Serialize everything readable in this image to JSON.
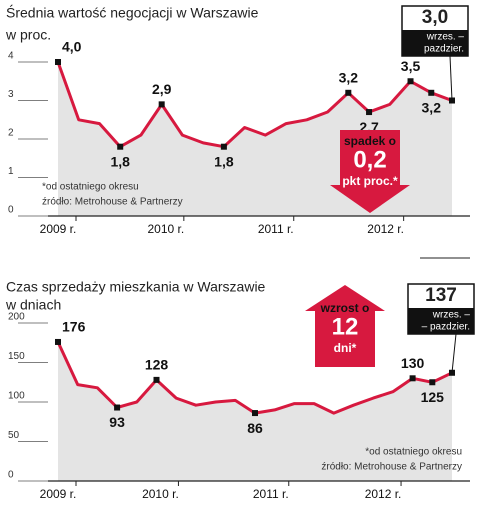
{
  "chart_data": [
    {
      "type": "line",
      "title": "Średnia wartość negocjacji w Warszawie",
      "subtitle": "w proc.",
      "x": [
        0,
        1,
        2,
        3,
        4,
        5,
        6,
        7,
        8,
        9,
        10,
        11,
        12,
        13,
        14,
        15,
        16,
        17,
        18,
        19
      ],
      "xlim": [
        0,
        19
      ],
      "xticks": [
        {
          "value": 0,
          "label": "2009 r."
        },
        {
          "value": 5.2,
          "label": "2010 r."
        },
        {
          "value": 10.5,
          "label": "2011 r."
        },
        {
          "value": 15.8,
          "label": "2012 r."
        }
      ],
      "ylim": [
        0,
        4
      ],
      "yticks": [
        0,
        1,
        2,
        3,
        4
      ],
      "series": [
        {
          "color": "#d7193f",
          "values": [
            4.0,
            2.5,
            2.4,
            1.8,
            2.1,
            2.9,
            2.1,
            1.9,
            1.8,
            2.3,
            2.1,
            2.4,
            2.5,
            2.7,
            3.2,
            2.7,
            2.9,
            3.5,
            3.2,
            3.0
          ],
          "value_labels": [
            "4,0",
            null,
            null,
            "1,8",
            null,
            "2,9",
            null,
            null,
            "1,8",
            null,
            null,
            null,
            null,
            null,
            "3,2",
            "2,7",
            null,
            "3,5",
            "3,2",
            "3,0"
          ]
        }
      ],
      "callout": [
        "wrzes. –",
        "pazdzier."
      ],
      "badge": {
        "direction": "down",
        "lines": [
          "spadek o",
          "0,2",
          "pkt proc.*"
        ]
      },
      "notes": [
        "*od ostatniego okresu",
        "źródło: Metrohouse & Partnerzy"
      ]
    },
    {
      "type": "line",
      "title": "Czas sprzedaży mieszkania w Warszawie",
      "subtitle": "w dniach",
      "x": [
        0,
        1,
        2,
        3,
        4,
        5,
        6,
        7,
        8,
        9,
        10,
        11,
        12,
        13,
        14,
        15,
        16,
        17,
        18,
        19,
        20
      ],
      "xlim": [
        0,
        20
      ],
      "xticks": [
        {
          "value": 0,
          "label": "2009 r."
        },
        {
          "value": 5.2,
          "label": "2010 r."
        },
        {
          "value": 10.8,
          "label": "2011 r."
        },
        {
          "value": 16.5,
          "label": "2012 r."
        }
      ],
      "ylim": [
        0,
        200
      ],
      "yticks": [
        0,
        50,
        100,
        150,
        200
      ],
      "series": [
        {
          "color": "#d7193f",
          "values": [
            176,
            122,
            118,
            93,
            100,
            128,
            105,
            96,
            100,
            102,
            86,
            90,
            98,
            98,
            86,
            96,
            105,
            113,
            130,
            125,
            137
          ],
          "value_labels": [
            "176",
            null,
            null,
            "93",
            null,
            "128",
            null,
            null,
            null,
            null,
            "86",
            null,
            null,
            null,
            null,
            null,
            null,
            null,
            "130",
            "125",
            "137"
          ]
        }
      ],
      "callout": [
        "wrzes. –",
        "– pazdzier."
      ],
      "badge": {
        "direction": "up",
        "lines": [
          "wzrost o",
          "12",
          "dni*"
        ]
      },
      "notes": [
        "*od ostatniego okresu",
        "źródło: Metrohouse & Partnerzy"
      ]
    }
  ]
}
